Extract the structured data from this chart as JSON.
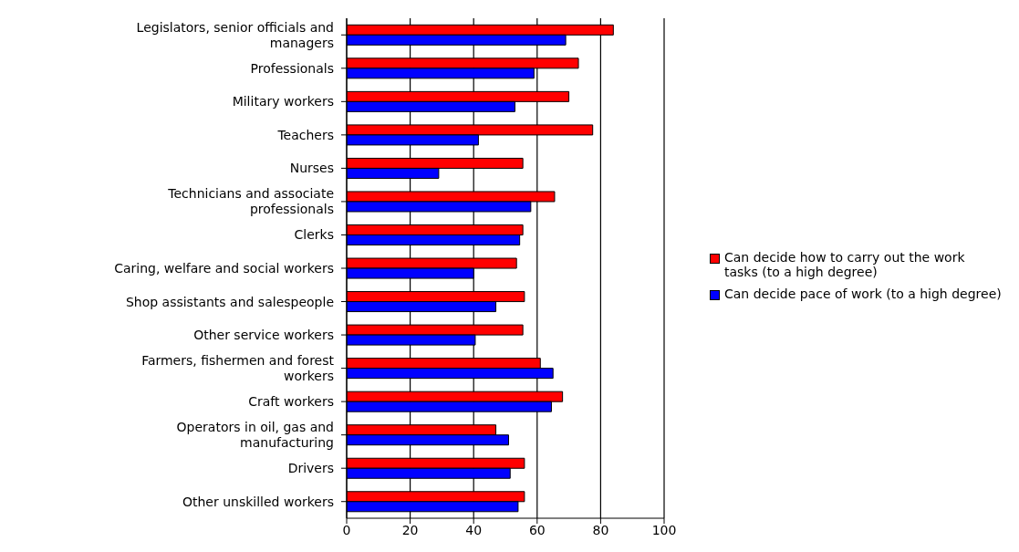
{
  "chart_data": {
    "type": "bar",
    "orientation": "horizontal",
    "categories": [
      "Legislators, senior officials and managers",
      "Professionals",
      "Military workers",
      "Teachers",
      "Nurses",
      "Technicians and associate professionals",
      "Clerks",
      "Caring, welfare and social workers",
      "Shop assistants and salespeople",
      "Other service workers",
      "Farmers, fishermen and forest workers",
      "Craft workers",
      "Operators in oil, gas and manufacturing",
      "Drivers",
      "Other unskilled workers"
    ],
    "series": [
      {
        "name": "Can decide how to carry out the work tasks (to a high degree)",
        "color": "#ff0000",
        "values": [
          84,
          73,
          70,
          77.5,
          55.5,
          65.5,
          55.5,
          53.5,
          56,
          55.5,
          61,
          68,
          47,
          56,
          56
        ]
      },
      {
        "name": "Can decide pace of work (to a high degree)",
        "color": "#0000ff",
        "values": [
          69,
          59,
          53,
          41.5,
          29,
          58,
          54.5,
          40,
          47,
          40.5,
          65,
          64.5,
          51,
          51.5,
          54
        ]
      }
    ],
    "xlim": [
      0,
      100
    ],
    "xticks": [
      0,
      20,
      40,
      60,
      80,
      100
    ],
    "grid": "x",
    "legend": "right"
  }
}
